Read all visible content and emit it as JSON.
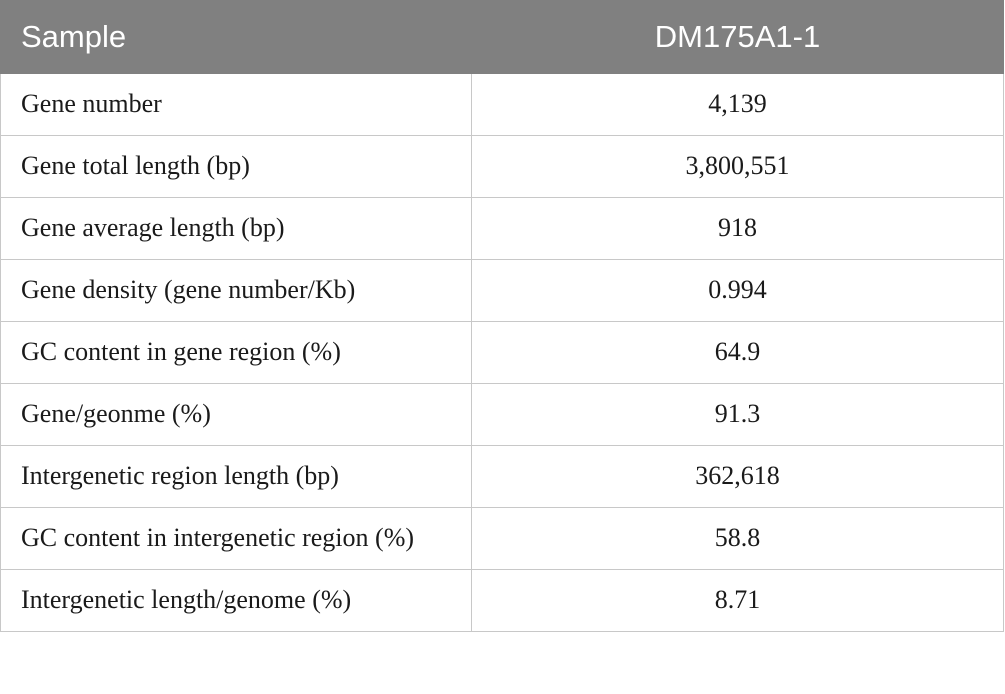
{
  "table": {
    "header": [
      "Sample",
      "DM175A1-1"
    ],
    "rows": [
      [
        "Gene number",
        "4,139"
      ],
      [
        "Gene total length (bp)",
        "3,800,551"
      ],
      [
        "Gene average length (bp)",
        "918"
      ],
      [
        "Gene density (gene number/Kb)",
        "0.994"
      ],
      [
        "GC content in gene region (%)",
        "64.9"
      ],
      [
        "Gene/geonme (%)",
        "91.3"
      ],
      [
        "Intergenetic region length (bp)",
        "362,618"
      ],
      [
        "GC content in intergenetic region (%)",
        "58.8"
      ],
      [
        "Intergenetic length/genome (%)",
        "8.71"
      ]
    ]
  }
}
